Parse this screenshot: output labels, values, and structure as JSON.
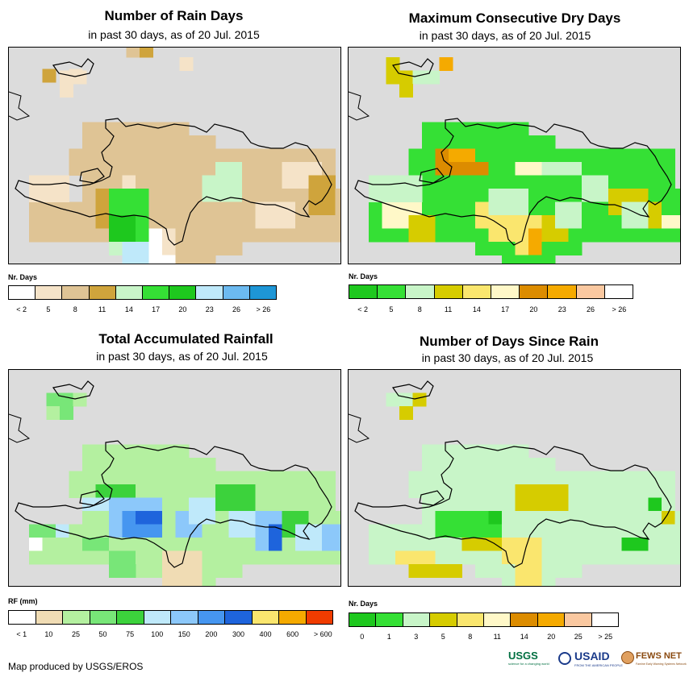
{
  "panels": [
    {
      "id": "rain-days",
      "title": "Number of Rain Days",
      "subtitle": "in past 30 days, as of 20 Jul. 2015",
      "legend_title": "Nr. Days",
      "legend_colors": [
        "#ffffff",
        "#f5e3c8",
        "#dfc495",
        "#cfa43c",
        "#c8f5c8",
        "#35e035",
        "#1ec81e",
        "#bfe9fa",
        "#6cbaf0",
        "#1e96d6"
      ],
      "legend_labels": [
        "< 2",
        "5",
        "8",
        "11",
        "14",
        "17",
        "20",
        "23",
        "26",
        "> 26"
      ],
      "legend_label_mode": "under",
      "base_color": 2,
      "patches": [
        [
          0,
          9,
          3,
          2,
          1
        ],
        [
          1,
          1,
          1,
          1,
          3
        ],
        [
          5,
          10,
          2,
          3,
          3
        ],
        [
          6,
          11,
          2,
          4,
          4
        ],
        [
          6,
          10,
          3,
          4,
          5
        ],
        [
          6,
          12,
          2,
          2,
          6
        ],
        [
          7,
          9,
          1,
          1,
          1
        ],
        [
          7,
          14,
          2,
          2,
          7
        ],
        [
          13,
          9,
          3,
          2,
          4
        ],
        [
          3,
          1,
          1,
          1,
          1
        ],
        [
          9,
          13,
          2,
          3,
          0
        ],
        [
          10,
          13,
          1,
          2,
          1
        ],
        [
          17,
          11,
          3,
          2,
          1
        ],
        [
          19,
          8,
          3,
          2,
          1
        ],
        [
          14,
          8,
          2,
          2,
          4
        ],
        [
          21,
          9,
          2,
          3,
          3
        ]
      ],
      "extra_cells": [
        [
          0,
          0,
          1
        ],
        [
          1,
          0,
          1
        ],
        [
          0,
          1,
          1
        ],
        [
          5,
          -2,
          2
        ],
        [
          6,
          -2,
          3
        ],
        [
          7,
          -3,
          3
        ],
        [
          9,
          -1,
          1
        ]
      ]
    },
    {
      "id": "dry-days",
      "title": "Maximum Consecutive Dry Days",
      "subtitle": "in past 30 days, as of 20 Jul. 2015",
      "legend_title": "Nr. Days",
      "legend_colors": [
        "#1ec81e",
        "#35e035",
        "#c8f5c8",
        "#d6cc00",
        "#fae66e",
        "#fff8c8",
        "#dc8c00",
        "#f5aa00",
        "#fac8a0",
        "#ffffff"
      ],
      "legend_labels": [
        "< 2",
        "5",
        "8",
        "11",
        "14",
        "17",
        "20",
        "23",
        "26",
        "> 26"
      ],
      "legend_label_mode": "under",
      "base_color": 1,
      "patches": [
        [
          0,
          9,
          4,
          2,
          2
        ],
        [
          5,
          7,
          3,
          2,
          6
        ],
        [
          6,
          7,
          2,
          1,
          7
        ],
        [
          7,
          8,
          2,
          1,
          6
        ],
        [
          11,
          8,
          3,
          1,
          5
        ],
        [
          13,
          8,
          3,
          1,
          2
        ],
        [
          16,
          9,
          2,
          2,
          2
        ],
        [
          18,
          10,
          3,
          2,
          3
        ],
        [
          19,
          11,
          3,
          2,
          2
        ],
        [
          1,
          11,
          3,
          2,
          5
        ],
        [
          3,
          12,
          2,
          2,
          3
        ],
        [
          9,
          12,
          3,
          2,
          4
        ],
        [
          11,
          12,
          2,
          3,
          4
        ],
        [
          12,
          13,
          1,
          2,
          7
        ],
        [
          13,
          12,
          2,
          2,
          3
        ],
        [
          14,
          11,
          2,
          2,
          2
        ],
        [
          9,
          10,
          3,
          2,
          2
        ],
        [
          21,
          11,
          1,
          2,
          3
        ],
        [
          22,
          12,
          2,
          1,
          5
        ],
        [
          8,
          11,
          1,
          2,
          4
        ]
      ],
      "extra_cells": [
        [
          0,
          0,
          3
        ],
        [
          1,
          0,
          2
        ],
        [
          2,
          0,
          2
        ],
        [
          3,
          -1,
          7
        ],
        [
          0,
          1,
          3
        ],
        [
          -1,
          -1,
          3
        ],
        [
          -1,
          0,
          3
        ],
        [
          6,
          -3,
          3
        ],
        [
          7,
          -3,
          2
        ],
        [
          8,
          -4,
          7
        ]
      ]
    },
    {
      "id": "rainfall",
      "title": "Total Accumulated Rainfall",
      "subtitle": "in past 30 days, as of 20 Jul. 2015",
      "legend_title": "RF (mm)",
      "legend_colors": [
        "#ffffff",
        "#f0dcb4",
        "#b4f0a0",
        "#78e678",
        "#3cd23c",
        "#bfe9fa",
        "#8cc8fa",
        "#4696f0",
        "#1e64dc",
        "#fae66e",
        "#f5aa00",
        "#f03c00"
      ],
      "legend_labels": [
        "< 1",
        "10",
        "25",
        "50",
        "75",
        "100",
        "150",
        "200",
        "300",
        "400",
        "600",
        "> 600"
      ],
      "legend_label_mode": "boundary",
      "base_color": 2,
      "patches": [
        [
          5,
          8,
          3,
          2,
          4
        ],
        [
          4,
          9,
          2,
          1,
          5
        ],
        [
          6,
          9,
          4,
          3,
          6
        ],
        [
          7,
          10,
          3,
          2,
          7
        ],
        [
          8,
          10,
          2,
          1,
          8
        ],
        [
          11,
          10,
          2,
          2,
          6
        ],
        [
          12,
          9,
          2,
          2,
          5
        ],
        [
          14,
          8,
          3,
          2,
          4
        ],
        [
          15,
          10,
          2,
          2,
          5
        ],
        [
          17,
          10,
          2,
          3,
          6
        ],
        [
          18,
          11,
          1,
          2,
          8
        ],
        [
          19,
          10,
          2,
          2,
          4
        ],
        [
          20,
          11,
          2,
          2,
          5
        ],
        [
          22,
          11,
          2,
          2,
          6
        ],
        [
          1,
          12,
          4,
          2,
          2
        ],
        [
          4,
          12,
          2,
          1,
          3
        ],
        [
          6,
          13,
          3,
          2,
          3
        ],
        [
          8,
          13,
          3,
          2,
          2
        ],
        [
          10,
          13,
          3,
          3,
          1
        ],
        [
          0,
          11,
          2,
          1,
          3
        ],
        [
          0,
          12,
          1,
          1,
          0
        ],
        [
          2,
          11,
          1,
          1,
          5
        ]
      ],
      "extra_cells": [
        [
          0,
          0,
          3
        ],
        [
          1,
          0,
          2
        ],
        [
          -1,
          0,
          3
        ],
        [
          -1,
          1,
          2
        ],
        [
          0,
          1,
          3
        ],
        [
          6,
          -3,
          3
        ],
        [
          7,
          -3,
          2
        ]
      ]
    },
    {
      "id": "days-since-rain",
      "title": "Number of Days Since Rain",
      "subtitle": "in past 30 days, as of 20 Jul. 2015",
      "legend_title": "Nr. Days",
      "legend_colors": [
        "#1ec81e",
        "#35e035",
        "#c8f5c8",
        "#d6cc00",
        "#fae66e",
        "#fff8c8",
        "#dc8c00",
        "#f5aa00",
        "#fac8a0",
        "#ffffff"
      ],
      "legend_labels": [
        "0",
        "1",
        "3",
        "5",
        "8",
        "11",
        "14",
        "20",
        "25",
        "> 25"
      ],
      "legend_label_mode": "under",
      "base_color": 2,
      "patches": [
        [
          11,
          8,
          4,
          2,
          3
        ],
        [
          5,
          10,
          3,
          2,
          1
        ],
        [
          8,
          10,
          2,
          2,
          1
        ],
        [
          9,
          10,
          1,
          1,
          0
        ],
        [
          10,
          12,
          3,
          2,
          4
        ],
        [
          11,
          13,
          2,
          3,
          4
        ],
        [
          7,
          12,
          2,
          1,
          3
        ],
        [
          2,
          13,
          3,
          1,
          4
        ],
        [
          19,
          12,
          2,
          1,
          0
        ],
        [
          21,
          9,
          1,
          1,
          0
        ],
        [
          22,
          10,
          1,
          1,
          3
        ],
        [
          3,
          14,
          4,
          1,
          3
        ],
        [
          9,
          12,
          1,
          1,
          3
        ]
      ],
      "extra_cells": [
        [
          0,
          0,
          2
        ],
        [
          1,
          0,
          3
        ],
        [
          -1,
          0,
          2
        ],
        [
          0,
          1,
          3
        ],
        [
          6,
          -3,
          2
        ],
        [
          7,
          -4,
          3
        ],
        [
          8,
          -4,
          2
        ]
      ]
    }
  ],
  "credit": "Map produced by USGS/EROS",
  "logos": {
    "usgs": "USGS",
    "usgs_tagline": "science for a changing world",
    "usaid": "USAID",
    "usaid_tagline": "FROM THE AMERICAN PEOPLE",
    "fewsnet": "FEWS NET",
    "fewsnet_tagline": "Famine Early Warning Systems Network"
  }
}
